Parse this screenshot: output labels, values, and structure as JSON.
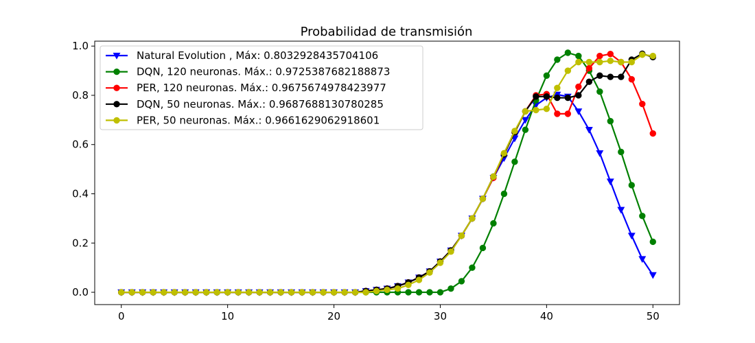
{
  "chart_data": {
    "type": "line",
    "title": "Probabilidad de transmisión",
    "xlabel": "",
    "ylabel": "",
    "xlim": [
      -2.5,
      52.5
    ],
    "ylim": [
      -0.05,
      1.02
    ],
    "xticks": [
      0,
      10,
      20,
      30,
      40,
      50
    ],
    "yticks": [
      0.0,
      0.2,
      0.4,
      0.6,
      0.8,
      1.0
    ],
    "xtick_labels": [
      "0",
      "10",
      "20",
      "30",
      "40",
      "50"
    ],
    "ytick_labels": [
      "0.0",
      "0.2",
      "0.4",
      "0.6",
      "0.8",
      "1.0"
    ],
    "grid": false,
    "legend_position": "top-left",
    "series": [
      {
        "name": "Natural Evolution , Máx: 0.8032928435704106",
        "color": "#0000ff",
        "marker": "triangle-down",
        "x": [
          0,
          1,
          2,
          3,
          4,
          5,
          6,
          7,
          8,
          9,
          10,
          11,
          12,
          13,
          14,
          15,
          16,
          17,
          18,
          19,
          20,
          21,
          22,
          23,
          24,
          25,
          26,
          27,
          28,
          29,
          30,
          31,
          32,
          33,
          34,
          35,
          36,
          37,
          38,
          39,
          40,
          41,
          42,
          43,
          44,
          45,
          46,
          47,
          48,
          49,
          50
        ],
        "values": [
          0,
          0,
          0,
          0,
          0,
          0,
          0,
          0,
          0,
          0,
          0,
          0,
          0,
          0,
          0,
          0,
          0,
          0,
          0,
          0,
          0,
          0,
          0,
          0.005,
          0.01,
          0.015,
          0.025,
          0.04,
          0.06,
          0.085,
          0.125,
          0.17,
          0.23,
          0.3,
          0.38,
          0.465,
          0.545,
          0.625,
          0.7,
          0.76,
          0.79,
          0.803,
          0.795,
          0.735,
          0.66,
          0.565,
          0.45,
          0.335,
          0.23,
          0.135,
          0.07
        ]
      },
      {
        "name": "DQN, 120 neuronas. Máx.: 0.9725387682188873",
        "color": "#008000",
        "marker": "circle",
        "x": [
          0,
          1,
          2,
          3,
          4,
          5,
          6,
          7,
          8,
          9,
          10,
          11,
          12,
          13,
          14,
          15,
          16,
          17,
          18,
          19,
          20,
          21,
          22,
          23,
          24,
          25,
          26,
          27,
          28,
          29,
          30,
          31,
          32,
          33,
          34,
          35,
          36,
          37,
          38,
          39,
          40,
          41,
          42,
          43,
          44,
          45,
          46,
          47,
          48,
          49,
          50
        ],
        "values": [
          0,
          0,
          0,
          0,
          0,
          0,
          0,
          0,
          0,
          0,
          0,
          0,
          0,
          0,
          0,
          0,
          0,
          0,
          0,
          0,
          0,
          0,
          0,
          0,
          0,
          0,
          0,
          0,
          0,
          0,
          0,
          0.015,
          0.045,
          0.1,
          0.18,
          0.28,
          0.4,
          0.53,
          0.66,
          0.78,
          0.88,
          0.945,
          0.973,
          0.96,
          0.9,
          0.815,
          0.695,
          0.57,
          0.435,
          0.31,
          0.205
        ]
      },
      {
        "name": "PER, 120 neuronas. Máx.: 0.9675674978423977",
        "color": "#ff0000",
        "marker": "circle",
        "x": [
          0,
          1,
          2,
          3,
          4,
          5,
          6,
          7,
          8,
          9,
          10,
          11,
          12,
          13,
          14,
          15,
          16,
          17,
          18,
          19,
          20,
          21,
          22,
          23,
          24,
          25,
          26,
          27,
          28,
          29,
          30,
          31,
          32,
          33,
          34,
          35,
          36,
          37,
          38,
          39,
          40,
          41,
          42,
          43,
          44,
          45,
          46,
          47,
          48,
          49,
          50
        ],
        "values": [
          0,
          0,
          0,
          0,
          0,
          0,
          0,
          0,
          0,
          0,
          0,
          0,
          0,
          0,
          0,
          0,
          0,
          0,
          0,
          0,
          0,
          0,
          0,
          0.005,
          0.01,
          0.015,
          0.025,
          0.04,
          0.06,
          0.085,
          0.125,
          0.17,
          0.23,
          0.3,
          0.38,
          0.465,
          0.56,
          0.65,
          0.735,
          0.8,
          0.805,
          0.725,
          0.725,
          0.835,
          0.91,
          0.96,
          0.968,
          0.935,
          0.865,
          0.765,
          0.645
        ]
      },
      {
        "name": "DQN, 50 neuronas. Máx.: 0.9687688130780285",
        "color": "#000000",
        "marker": "circle",
        "x": [
          0,
          1,
          2,
          3,
          4,
          5,
          6,
          7,
          8,
          9,
          10,
          11,
          12,
          13,
          14,
          15,
          16,
          17,
          18,
          19,
          20,
          21,
          22,
          23,
          24,
          25,
          26,
          27,
          28,
          29,
          30,
          31,
          32,
          33,
          34,
          35,
          36,
          37,
          38,
          39,
          40,
          41,
          42,
          43,
          44,
          45,
          46,
          47,
          48,
          49,
          50
        ],
        "values": [
          0,
          0,
          0,
          0,
          0,
          0,
          0,
          0,
          0,
          0,
          0,
          0,
          0,
          0,
          0,
          0,
          0,
          0,
          0,
          0,
          0,
          0,
          0,
          0.005,
          0.01,
          0.015,
          0.025,
          0.04,
          0.06,
          0.085,
          0.125,
          0.17,
          0.23,
          0.3,
          0.38,
          0.47,
          0.56,
          0.65,
          0.735,
          0.795,
          0.795,
          0.79,
          0.79,
          0.8,
          0.855,
          0.88,
          0.875,
          0.875,
          0.945,
          0.969,
          0.955
        ]
      },
      {
        "name": "PER, 50 neuronas. Máx.: 0.9661629062918601",
        "color": "#bfbf00",
        "marker": "circle",
        "x": [
          0,
          1,
          2,
          3,
          4,
          5,
          6,
          7,
          8,
          9,
          10,
          11,
          12,
          13,
          14,
          15,
          16,
          17,
          18,
          19,
          20,
          21,
          22,
          23,
          24,
          25,
          26,
          27,
          28,
          29,
          30,
          31,
          32,
          33,
          34,
          35,
          36,
          37,
          38,
          39,
          40,
          41,
          42,
          43,
          44,
          45,
          46,
          47,
          48,
          49,
          50
        ],
        "values": [
          0,
          0,
          0,
          0,
          0,
          0,
          0,
          0,
          0,
          0,
          0,
          0,
          0,
          0,
          0,
          0,
          0,
          0,
          0,
          0,
          0,
          0,
          0,
          0,
          0.005,
          0.01,
          0.015,
          0.03,
          0.05,
          0.08,
          0.12,
          0.165,
          0.23,
          0.3,
          0.38,
          0.47,
          0.565,
          0.655,
          0.735,
          0.74,
          0.745,
          0.83,
          0.9,
          0.935,
          0.935,
          0.935,
          0.94,
          0.935,
          0.935,
          0.965,
          0.96
        ]
      }
    ]
  }
}
